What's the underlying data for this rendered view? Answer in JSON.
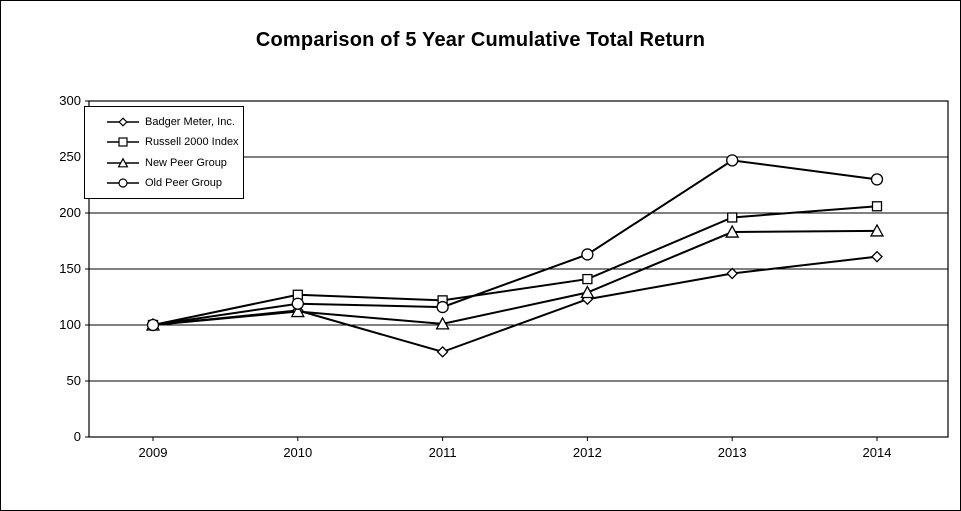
{
  "chart_data": {
    "type": "line",
    "title": "Comparison of 5 Year Cumulative Total Return",
    "categories": [
      "2009",
      "2010",
      "2011",
      "2012",
      "2013",
      "2014"
    ],
    "series": [
      {
        "name": "Badger Meter, Inc.",
        "marker": "diamond",
        "values": [
          100,
          113,
          76,
          123,
          146,
          161
        ]
      },
      {
        "name": "Russell 2000 Index",
        "marker": "square",
        "values": [
          100,
          127,
          122,
          141,
          196,
          206
        ]
      },
      {
        "name": "New Peer Group",
        "marker": "triangle",
        "values": [
          100,
          112,
          101,
          129,
          183,
          184
        ]
      },
      {
        "name": "Old Peer Group",
        "marker": "circle",
        "values": [
          100,
          119,
          116,
          163,
          247,
          230
        ]
      }
    ],
    "xlabel": "",
    "ylabel": "",
    "ylim": [
      0,
      300
    ],
    "yticks": [
      0,
      50,
      100,
      150,
      200,
      250,
      300
    ],
    "ytick_labels": [
      "0",
      "50",
      "100",
      "150",
      "200",
      "250",
      "300"
    ],
    "grid": true,
    "legend_position": "top-left-inside",
    "line_color": "#000000",
    "marker_fill": "#ffffff",
    "background": "#ffffff"
  }
}
